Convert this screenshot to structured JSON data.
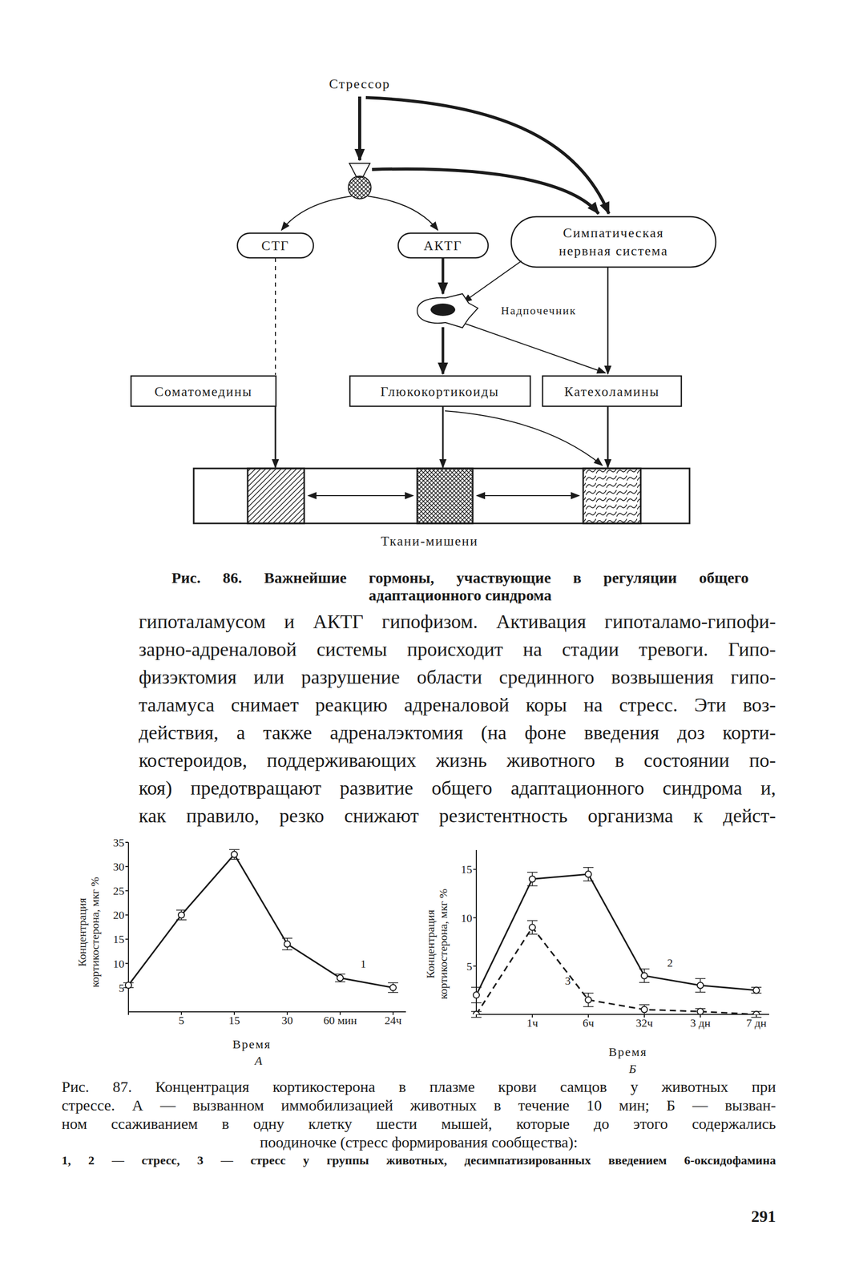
{
  "figure86": {
    "nodes": {
      "stressor": "Стрессор",
      "stg": "СТГ",
      "actg": "АКТГ",
      "sympathetic": [
        "Симпатическая",
        "нервная система"
      ],
      "adrenal": "Надпочечник",
      "somatomedins": "Соматомедины",
      "glucocorticoids": "Глюкокортикоиды",
      "catecholamines": "Катехоламины",
      "targets": "Ткани-мишени"
    },
    "caption": [
      "Рис. 86. Важнейшие гормоны, участвующие в регуляции общего",
      "адаптационного синдрома"
    ]
  },
  "paragraph": [
    "гипоталамусом и АКТГ гипофизом. Активация гипоталамо-гипофи-",
    "зарно-адреналовой системы происходит на стадии тревоги. Гипо-",
    "физэктомия или разрушение области срединного возвышения гипо-",
    "таламуса снимает реакцию адреналовой коры на стресс. Эти воз-",
    "действия, а также адреналэктомия (на фоне введения доз корти-",
    "костероидов, поддерживающих жизнь животного в состоянии по-",
    "коя) предотвращают развитие общего адаптационного синдрома и,",
    "как правило, резко снижают резистентность организма к дейст-"
  ],
  "chart_data": [
    {
      "type": "line",
      "title": "А",
      "x_label": "Время",
      "y_label": [
        "Концентрация",
        "кортикостерона, мкг %"
      ],
      "categories": [
        null,
        "5",
        "15",
        "30",
        "60 мин",
        "24ч"
      ],
      "series": [
        {
          "name": "1",
          "color": "#1a1a1a",
          "line_style": "solid",
          "marker": "circle",
          "values": [
            5.5,
            20,
            32.5,
            14,
            7,
            5
          ],
          "errors": [
            0.5,
            1,
            1,
            1.2,
            0.8,
            1
          ]
        }
      ],
      "ylim": [
        0,
        35
      ],
      "yticks": [
        5,
        10,
        15,
        20,
        25,
        30,
        35
      ]
    },
    {
      "type": "line",
      "title": "Б",
      "x_label": "Время",
      "y_label": [
        "Концентрация",
        "кортикостерона, мкг %"
      ],
      "categories": [
        null,
        "1ч",
        "6ч",
        "32ч",
        "3 дн",
        "7 дн"
      ],
      "series": [
        {
          "name": "2",
          "color": "#1a1a1a",
          "line_style": "solid",
          "marker": "circle",
          "values": [
            2,
            14,
            14.5,
            4,
            3,
            2.5
          ],
          "errors": [
            0.8,
            0.7,
            0.7,
            0.7,
            0.7,
            0.3
          ]
        },
        {
          "name": "3",
          "color": "#1a1a1a",
          "line_style": "dashed",
          "marker": "circle",
          "values": [
            0,
            9,
            1.5,
            0.5,
            0.3,
            0
          ],
          "errors": [
            0.3,
            0.7,
            0.7,
            0.5,
            0.3,
            0.3
          ]
        }
      ],
      "ylim": [
        0,
        17
      ],
      "yticks": [
        5,
        10,
        15
      ]
    }
  ],
  "figure87": {
    "caption": [
      "Рис. 87. Концентрация кортикостерона в плазме крови самцов у животных при",
      "стрессе. А — вызванном иммобилизацией животных в течение 10 мин; Б — вызван-",
      "ном ссаживанием в одну клетку шести мышей, которые до этого содержались",
      "поодиночке (стресс формирования сообщества):"
    ],
    "note": "1, 2 — стресс, 3 — стресс у группы животных, десимпатизированных введением 6-оксидофамина"
  },
  "page_number": "291"
}
